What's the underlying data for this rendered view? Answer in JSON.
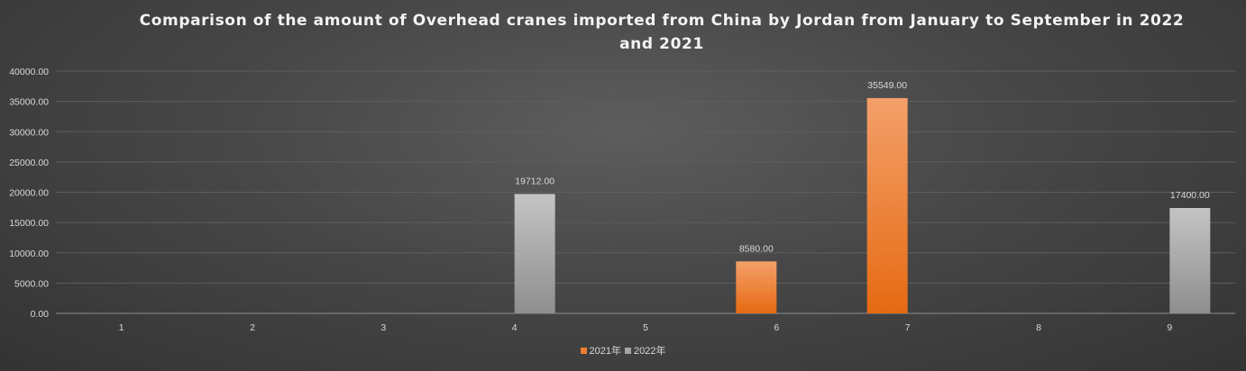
{
  "chart_data": {
    "type": "bar",
    "title": "Comparison of the amount of Overhead cranes imported from China by Jordan from January to September in 2022 and 2021",
    "xlabel": "",
    "ylabel": "",
    "categories": [
      "1",
      "2",
      "3",
      "4",
      "5",
      "6",
      "7",
      "8",
      "9"
    ],
    "series": [
      {
        "name": "2021年",
        "color": "#ed7d31",
        "values": [
          0,
          0,
          0,
          0,
          0,
          8580,
          35549,
          0,
          0
        ]
      },
      {
        "name": "2022年",
        "color": "#a5a5a5",
        "values": [
          0,
          0,
          0,
          19712,
          0,
          0,
          0,
          0,
          17400
        ]
      }
    ],
    "ylim": [
      0,
      40000
    ],
    "yticks": [
      "0.00",
      "5000.00",
      "10000.00",
      "15000.00",
      "20000.00",
      "25000.00",
      "30000.00",
      "35000.00",
      "40000.00"
    ],
    "data_labels": [
      {
        "series": 1,
        "category": "4",
        "text": "19712.00"
      },
      {
        "series": 0,
        "category": "6",
        "text": "8580.00"
      },
      {
        "series": 0,
        "category": "7",
        "text": "35549.00"
      },
      {
        "series": 1,
        "category": "9",
        "text": "17400.00"
      }
    ],
    "grid": true,
    "legend": "bottom"
  }
}
